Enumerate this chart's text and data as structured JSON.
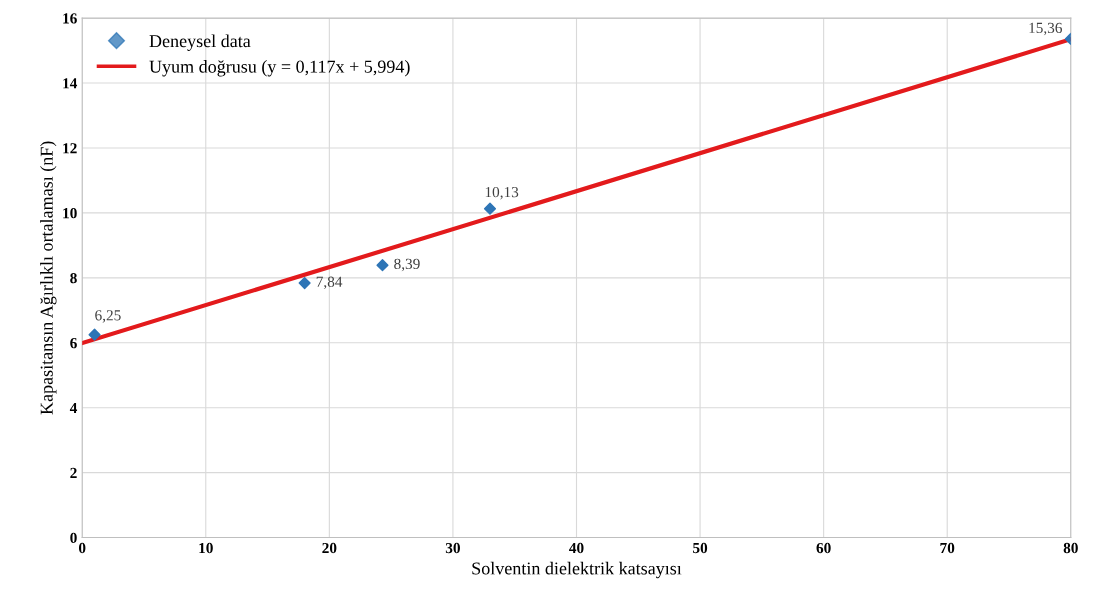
{
  "chart_data": {
    "type": "scatter",
    "xlabel": "Solventin dielektrik katsayısı",
    "ylabel": "Kapasitansın Ağırlıklı ortalaması (nF)",
    "xlim": [
      0,
      80
    ],
    "xticks": [
      0,
      10,
      20,
      30,
      40,
      50,
      60,
      70,
      80
    ],
    "ylim": [
      0,
      16
    ],
    "yticks": [
      0,
      2,
      4,
      6,
      8,
      10,
      12,
      14,
      16
    ],
    "grid": true,
    "legend": "top left",
    "series": [
      {
        "name": "Deneysel data",
        "marker": "diamond",
        "color": "#2e75b6",
        "x": [
          1,
          18,
          24.3,
          33,
          80
        ],
        "values": [
          6.25,
          7.84,
          8.39,
          10.13,
          15.36
        ],
        "value_labels": [
          "6,25",
          "7,84",
          "8,39",
          "10,13",
          "15,36"
        ]
      },
      {
        "name": "Uyum doğrusu (y = 0,117x + 5,994)",
        "type": "line",
        "line_style": "solid",
        "color": "#e31a1c",
        "x": [
          0,
          80
        ],
        "values": [
          5.99,
          15.35
        ]
      }
    ]
  }
}
